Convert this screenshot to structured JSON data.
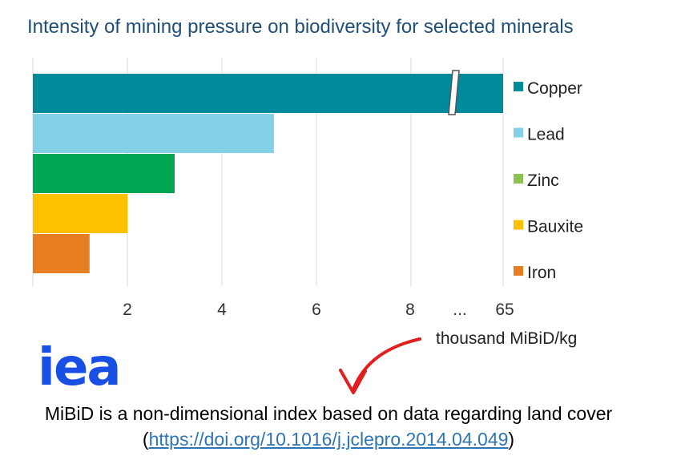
{
  "chart_data": {
    "type": "bar",
    "orientation": "horizontal",
    "title": "Intensity of mining pressure on biodiversity for selected minerals",
    "categories": [
      "Copper",
      "Lead",
      "Zinc",
      "Bauxite",
      "Iron"
    ],
    "values": [
      65,
      5.1,
      3.0,
      2.0,
      1.2
    ],
    "colors": [
      "#008b9c",
      "#82d1e6",
      "#00a651",
      "#ffc000",
      "#e87e22"
    ],
    "legend_colors": [
      "#008b9c",
      "#82d1e6",
      "#8cc251",
      "#ffc000",
      "#e87e22"
    ],
    "x_ticks": [
      "2",
      "4",
      "6",
      "8",
      "...",
      "65"
    ],
    "xlim": [
      0,
      65
    ],
    "axis_break": true,
    "xlabel": "thousand MiBiD/kg",
    "legend_position": "right"
  },
  "logo_text": "iea",
  "footnote": {
    "text_before": "MiBiD is a non-dimensional index based on data regarding land cover (",
    "link": "https://doi.org/10.1016/j.jclepro.2014.04.049",
    "text_after": ")"
  },
  "annotation": {
    "arrow_color": "#e02020"
  }
}
